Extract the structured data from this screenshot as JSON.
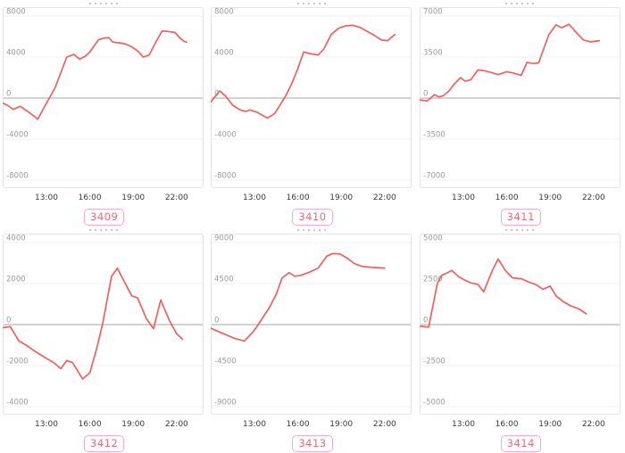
{
  "styles": {
    "line_color": "#f25f5f",
    "zero_line_color": "#d2d2d2",
    "grid_color": "#f0f0f0",
    "panel_border_color": "#e4e4e4",
    "y_label_color": "#9b9b9b",
    "x_label_color": "#383838",
    "badge_border_color": "#f6aac6",
    "badge_text_color": "#e96a74",
    "background": "#ffffff"
  },
  "grid": {
    "rows": 2,
    "cols": 3
  },
  "chart_data": [
    {
      "type": "line",
      "label": "3409",
      "x_tick_labels": [
        "13:00",
        "16:00",
        "19:00",
        "22:00"
      ],
      "x_tick_hours": [
        13,
        16,
        19,
        22
      ],
      "y_tick_labels": [
        "8000",
        "4000",
        "0",
        "-4000",
        "-8000"
      ],
      "ylim": [
        -8000,
        8000
      ],
      "xlim_hours": [
        10,
        23.8
      ],
      "x": [
        10.0,
        10.3,
        10.7,
        11.2,
        11.5,
        12.0,
        12.4,
        12.8,
        13.2,
        13.6,
        14.4,
        14.9,
        15.3,
        15.7,
        16.0,
        16.6,
        17.0,
        17.3,
        17.6,
        18.0,
        18.4,
        18.9,
        19.3,
        19.7,
        20.1,
        20.5,
        21.0,
        21.4,
        21.9,
        22.2,
        22.5,
        22.7
      ],
      "y": [
        -500,
        -700,
        -1100,
        -800,
        -1100,
        -1600,
        -2050,
        -1000,
        0,
        1000,
        4000,
        4250,
        3800,
        4100,
        4500,
        5700,
        5850,
        5900,
        5450,
        5400,
        5300,
        5000,
        4600,
        4000,
        4200,
        5300,
        6550,
        6500,
        6400,
        5900,
        5550,
        5450
      ]
    },
    {
      "type": "line",
      "label": "3410",
      "x_tick_labels": [
        "13:00",
        "16:00",
        "19:00",
        "22:00"
      ],
      "x_tick_hours": [
        13,
        16,
        19,
        22
      ],
      "y_tick_labels": [
        "8000",
        "4000",
        "0",
        "-4000",
        "-8000"
      ],
      "ylim": [
        -8000,
        8000
      ],
      "xlim_hours": [
        10,
        23.8
      ],
      "x": [
        10.0,
        10.3,
        10.6,
        11.0,
        11.5,
        12.0,
        12.4,
        12.7,
        13.2,
        13.9,
        14.4,
        14.8,
        15.2,
        15.6,
        16.0,
        16.4,
        16.8,
        17.4,
        17.8,
        18.3,
        18.8,
        19.3,
        19.8,
        20.3,
        20.8,
        21.3,
        21.8,
        22.2,
        22.7
      ],
      "y": [
        -350,
        200,
        700,
        200,
        -700,
        -1150,
        -1300,
        -1150,
        -1400,
        -1950,
        -1500,
        -600,
        300,
        1500,
        2900,
        4500,
        4350,
        4200,
        4800,
        6200,
        6800,
        7050,
        7100,
        6900,
        6500,
        6100,
        5650,
        5600,
        6200
      ]
    },
    {
      "type": "line",
      "label": "3411",
      "x_tick_labels": [
        "13:00",
        "16:00",
        "19:00",
        "22:00"
      ],
      "x_tick_hours": [
        13,
        16,
        19,
        22
      ],
      "y_tick_labels": [
        "7000",
        "3500",
        "0",
        "-3500",
        "-7000"
      ],
      "ylim": [
        -7000,
        7000
      ],
      "xlim_hours": [
        10,
        23.8
      ],
      "x": [
        10.0,
        10.5,
        11.0,
        11.3,
        11.6,
        12.0,
        12.3,
        12.8,
        13.1,
        13.5,
        14.0,
        14.4,
        15.0,
        15.4,
        16.0,
        16.4,
        17.0,
        17.4,
        17.8,
        18.2,
        18.9,
        19.4,
        19.8,
        20.3,
        20.8,
        21.3,
        21.8,
        22.4
      ],
      "y": [
        -150,
        -250,
        300,
        100,
        200,
        600,
        1100,
        1750,
        1450,
        1550,
        2400,
        2350,
        2150,
        2000,
        2250,
        2150,
        1950,
        3050,
        2950,
        3000,
        5400,
        6250,
        6000,
        6300,
        5600,
        4950,
        4800,
        4900
      ]
    },
    {
      "type": "line",
      "label": "3412",
      "x_tick_labels": [
        "13:00",
        "16:00",
        "19:00",
        "22:00"
      ],
      "x_tick_hours": [
        13,
        16,
        19,
        22
      ],
      "y_tick_labels": [
        "4000",
        "2000",
        "0",
        "-2000",
        "-4000"
      ],
      "ylim": [
        -4000,
        4000
      ],
      "xlim_hours": [
        10,
        23.8
      ],
      "x": [
        10.0,
        10.5,
        11.1,
        11.6,
        12.2,
        13.0,
        13.5,
        14.0,
        14.4,
        14.8,
        15.5,
        16.0,
        16.5,
        16.9,
        17.5,
        17.9,
        18.3,
        18.9,
        19.3,
        19.9,
        20.4,
        20.9,
        21.5,
        22.0,
        22.4
      ],
      "y": [
        -150,
        -100,
        -800,
        -1000,
        -1300,
        -1650,
        -1850,
        -2150,
        -1750,
        -1850,
        -2650,
        -2350,
        -1100,
        100,
        2350,
        2750,
        2200,
        1400,
        1300,
        300,
        -200,
        1200,
        200,
        -450,
        -700
      ]
    },
    {
      "type": "line",
      "label": "3413",
      "x_tick_labels": [
        "13:00",
        "16:00",
        "19:00",
        "22:00"
      ],
      "x_tick_hours": [
        13,
        16,
        19,
        22
      ],
      "y_tick_labels": [
        "9000",
        "4500",
        "0",
        "-4500",
        "-9000"
      ],
      "ylim": [
        -9000,
        9000
      ],
      "xlim_hours": [
        10,
        23.8
      ],
      "x": [
        10.0,
        10.5,
        11.0,
        11.6,
        12.3,
        12.9,
        13.3,
        14.0,
        14.5,
        14.9,
        15.4,
        15.8,
        16.2,
        16.8,
        17.4,
        18.0,
        18.4,
        18.9,
        19.4,
        19.9,
        20.4,
        21.0,
        21.5,
        22.0
      ],
      "y": [
        -400,
        -750,
        -1100,
        -1500,
        -1800,
        -800,
        100,
        1800,
        3300,
        5100,
        5700,
        5300,
        5400,
        5750,
        6200,
        7500,
        7800,
        7750,
        7300,
        6700,
        6400,
        6300,
        6250,
        6200
      ]
    },
    {
      "type": "line",
      "label": "3414",
      "x_tick_labels": [
        "13:00",
        "16:00",
        "19:00",
        "22:00"
      ],
      "x_tick_hours": [
        13,
        16,
        19,
        22
      ],
      "y_tick_labels": [
        "5000",
        "2500",
        "0",
        "-2500",
        "-5000"
      ],
      "ylim": [
        -5000,
        5000
      ],
      "xlim_hours": [
        10,
        23.8
      ],
      "x": [
        10.0,
        10.6,
        11.2,
        11.5,
        12.0,
        12.2,
        12.7,
        13.0,
        13.5,
        14.0,
        14.4,
        15.0,
        15.4,
        15.9,
        16.4,
        17.0,
        17.5,
        18.0,
        18.5,
        19.0,
        19.4,
        19.9,
        20.4,
        21.0,
        21.5
      ],
      "y": [
        -100,
        -150,
        2500,
        3000,
        3200,
        3300,
        2900,
        2750,
        2550,
        2450,
        2000,
        3300,
        4000,
        3300,
        2850,
        2800,
        2600,
        2450,
        2150,
        2350,
        1750,
        1400,
        1150,
        950,
        650
      ]
    }
  ]
}
